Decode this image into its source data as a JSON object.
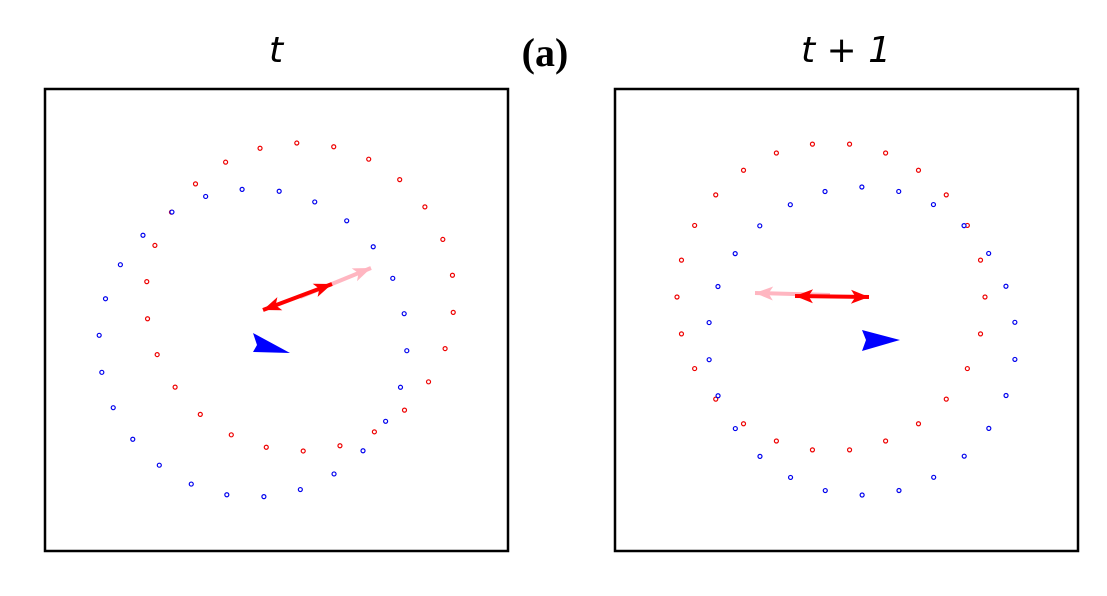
{
  "label": "(a)",
  "panels": [
    {
      "title": "t"
    },
    {
      "title": "t + 1"
    }
  ]
}
